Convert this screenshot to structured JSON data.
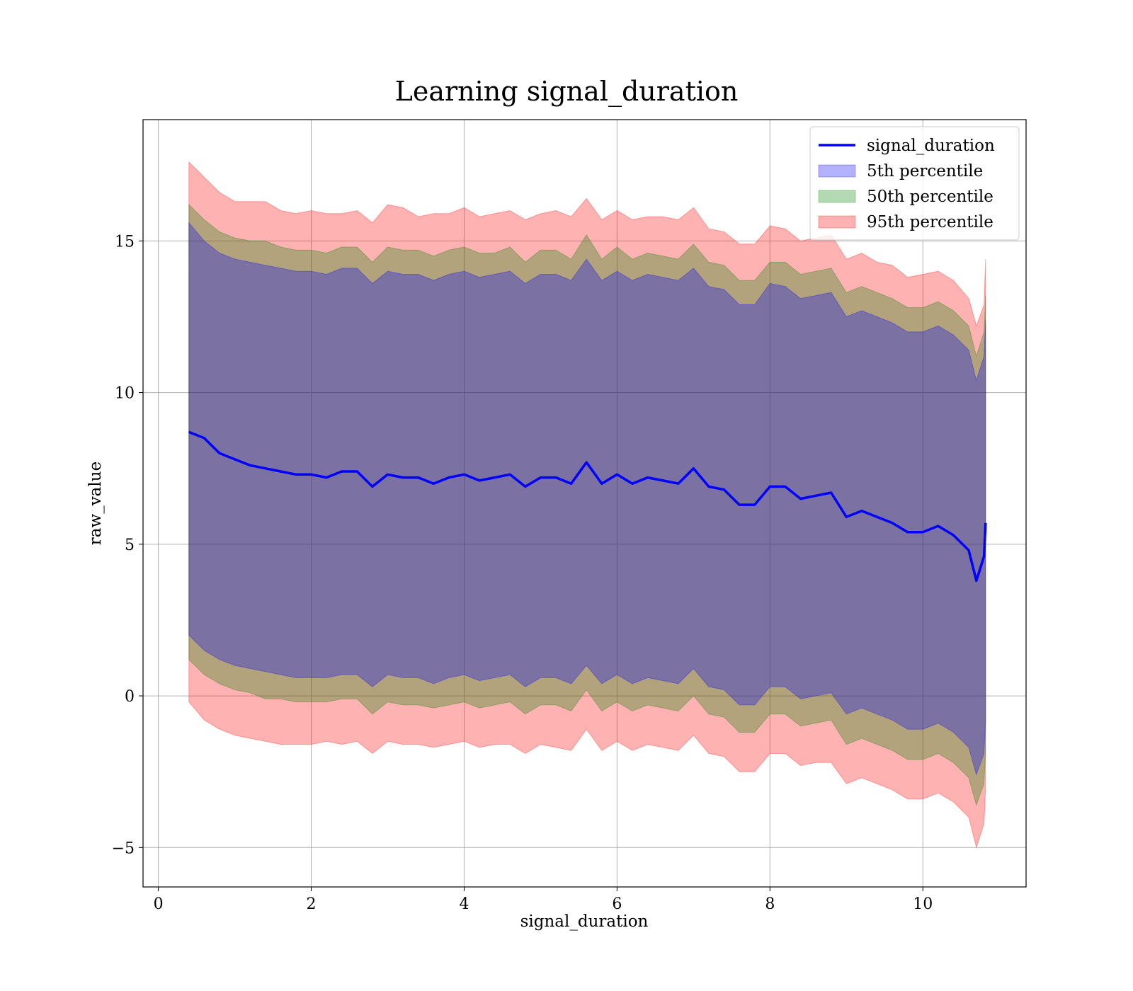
{
  "chart_data": {
    "type": "area",
    "title": "Learning signal_duration",
    "xlabel": "signal_duration",
    "ylabel": "raw_value",
    "xlim": [
      -0.2,
      11.35
    ],
    "ylim": [
      -6.3,
      19
    ],
    "x_ticks": [
      0,
      2,
      4,
      6,
      8,
      10
    ],
    "x_tick_labels": [
      "0",
      "2",
      "4",
      "6",
      "8",
      "10"
    ],
    "y_ticks": [
      -5,
      0,
      5,
      10,
      15
    ],
    "y_tick_labels": [
      "−5",
      "0",
      "5",
      "10",
      "15"
    ],
    "grid": true,
    "legend": {
      "position": "top-right",
      "entries": [
        {
          "label": "signal_duration",
          "kind": "line",
          "color": "#0000ff"
        },
        {
          "label": "5th percentile",
          "kind": "band",
          "color": "#0000ff"
        },
        {
          "label": "50th percentile",
          "kind": "band",
          "color": "#008000"
        },
        {
          "label": "95th percentile",
          "kind": "band",
          "color": "#ff0000"
        }
      ]
    },
    "x": [
      0.4,
      0.6,
      0.8,
      1.0,
      1.2,
      1.4,
      1.6,
      1.8,
      2.0,
      2.2,
      2.4,
      2.6,
      2.8,
      3.0,
      3.2,
      3.4,
      3.6,
      3.8,
      4.0,
      4.2,
      4.4,
      4.6,
      4.8,
      5.0,
      5.2,
      5.4,
      5.6,
      5.8,
      6.0,
      6.2,
      6.4,
      6.6,
      6.8,
      7.0,
      7.2,
      7.4,
      7.6,
      7.8,
      8.0,
      8.2,
      8.4,
      8.6,
      8.8,
      9.0,
      9.2,
      9.4,
      9.6,
      9.8,
      10.0,
      10.2,
      10.4,
      10.6,
      10.7,
      10.8,
      10.82
    ],
    "series": [
      {
        "name": "signal_duration",
        "kind": "line",
        "color": "#0000ff",
        "values": [
          8.7,
          8.5,
          8.0,
          7.8,
          7.6,
          7.5,
          7.4,
          7.3,
          7.3,
          7.2,
          7.4,
          7.4,
          6.9,
          7.3,
          7.2,
          7.2,
          7.0,
          7.2,
          7.3,
          7.1,
          7.2,
          7.3,
          6.9,
          7.2,
          7.2,
          7.0,
          7.7,
          7.0,
          7.3,
          7.0,
          7.2,
          7.1,
          7.0,
          7.5,
          6.9,
          6.8,
          6.3,
          6.3,
          6.9,
          6.9,
          6.5,
          6.6,
          6.7,
          5.9,
          6.1,
          5.9,
          5.7,
          5.4,
          5.4,
          5.6,
          5.3,
          4.8,
          3.8,
          4.6,
          5.7
        ]
      },
      {
        "name": "95th percentile",
        "kind": "band",
        "color": "#ff0000",
        "lower": [
          -0.2,
          -0.8,
          -1.1,
          -1.3,
          -1.4,
          -1.5,
          -1.6,
          -1.6,
          -1.6,
          -1.5,
          -1.6,
          -1.5,
          -1.9,
          -1.5,
          -1.6,
          -1.6,
          -1.7,
          -1.6,
          -1.5,
          -1.7,
          -1.6,
          -1.6,
          -1.9,
          -1.6,
          -1.7,
          -1.8,
          -1.1,
          -1.8,
          -1.5,
          -1.8,
          -1.6,
          -1.7,
          -1.8,
          -1.3,
          -1.9,
          -2.0,
          -2.5,
          -2.5,
          -1.9,
          -1.9,
          -2.3,
          -2.2,
          -2.2,
          -2.9,
          -2.7,
          -2.9,
          -3.1,
          -3.4,
          -3.4,
          -3.2,
          -3.5,
          -4.0,
          -5.0,
          -4.2,
          -3.1
        ],
        "upper": [
          17.6,
          17.1,
          16.6,
          16.3,
          16.3,
          16.3,
          16.0,
          15.9,
          16.0,
          15.9,
          15.9,
          16.0,
          15.6,
          16.2,
          16.1,
          15.8,
          15.9,
          15.9,
          16.1,
          15.8,
          15.9,
          16.0,
          15.7,
          15.9,
          16.0,
          15.8,
          16.4,
          15.7,
          16.0,
          15.7,
          15.8,
          15.8,
          15.7,
          16.1,
          15.4,
          15.3,
          14.9,
          14.9,
          15.5,
          15.4,
          15.0,
          15.1,
          15.2,
          14.4,
          14.6,
          14.3,
          14.2,
          13.8,
          13.9,
          14.0,
          13.7,
          13.1,
          12.2,
          12.9,
          14.4
        ]
      },
      {
        "name": "50th percentile",
        "kind": "band",
        "color": "#008000",
        "lower": [
          1.2,
          0.7,
          0.4,
          0.2,
          0.1,
          -0.1,
          -0.1,
          -0.2,
          -0.2,
          -0.2,
          -0.1,
          -0.1,
          -0.6,
          -0.2,
          -0.3,
          -0.3,
          -0.4,
          -0.3,
          -0.2,
          -0.4,
          -0.3,
          -0.2,
          -0.6,
          -0.3,
          -0.3,
          -0.5,
          0.2,
          -0.5,
          -0.2,
          -0.5,
          -0.3,
          -0.4,
          -0.5,
          0.0,
          -0.6,
          -0.7,
          -1.2,
          -1.2,
          -0.6,
          -0.6,
          -1.0,
          -0.9,
          -0.8,
          -1.6,
          -1.4,
          -1.6,
          -1.8,
          -2.1,
          -2.1,
          -1.9,
          -2.2,
          -2.7,
          -3.6,
          -2.9,
          -1.8
        ],
        "upper": [
          16.2,
          15.7,
          15.3,
          15.1,
          15.0,
          15.0,
          14.8,
          14.7,
          14.7,
          14.6,
          14.8,
          14.8,
          14.3,
          14.8,
          14.7,
          14.7,
          14.5,
          14.7,
          14.8,
          14.6,
          14.6,
          14.8,
          14.3,
          14.7,
          14.7,
          14.4,
          15.2,
          14.4,
          14.8,
          14.4,
          14.6,
          14.5,
          14.4,
          14.9,
          14.3,
          14.2,
          13.7,
          13.7,
          14.3,
          14.3,
          13.9,
          14.0,
          14.1,
          13.3,
          13.5,
          13.3,
          13.1,
          12.8,
          12.8,
          13.0,
          12.7,
          12.2,
          11.2,
          12.0,
          13.2
        ]
      },
      {
        "name": "5th percentile",
        "kind": "band",
        "color": "#0000ff",
        "lower": [
          2.0,
          1.5,
          1.2,
          1.0,
          0.9,
          0.8,
          0.7,
          0.6,
          0.6,
          0.6,
          0.7,
          0.7,
          0.3,
          0.7,
          0.6,
          0.6,
          0.4,
          0.6,
          0.7,
          0.5,
          0.6,
          0.7,
          0.3,
          0.6,
          0.6,
          0.4,
          1.0,
          0.4,
          0.7,
          0.4,
          0.6,
          0.5,
          0.4,
          0.9,
          0.3,
          0.2,
          -0.3,
          -0.3,
          0.3,
          0.3,
          -0.1,
          0.0,
          0.1,
          -0.6,
          -0.4,
          -0.6,
          -0.8,
          -1.1,
          -1.1,
          -0.9,
          -1.2,
          -1.7,
          -2.6,
          -1.9,
          -0.8
        ],
        "upper": [
          15.6,
          15.0,
          14.6,
          14.4,
          14.3,
          14.2,
          14.1,
          14.0,
          14.0,
          13.9,
          14.1,
          14.1,
          13.6,
          14.0,
          13.9,
          13.9,
          13.7,
          13.9,
          14.0,
          13.8,
          13.9,
          14.0,
          13.6,
          13.9,
          13.9,
          13.7,
          14.4,
          13.7,
          14.0,
          13.7,
          13.9,
          13.8,
          13.7,
          14.1,
          13.5,
          13.4,
          12.9,
          12.9,
          13.6,
          13.5,
          13.1,
          13.2,
          13.3,
          12.5,
          12.7,
          12.5,
          12.3,
          12.0,
          12.0,
          12.2,
          11.9,
          11.4,
          10.4,
          11.2,
          12.4
        ]
      }
    ]
  }
}
